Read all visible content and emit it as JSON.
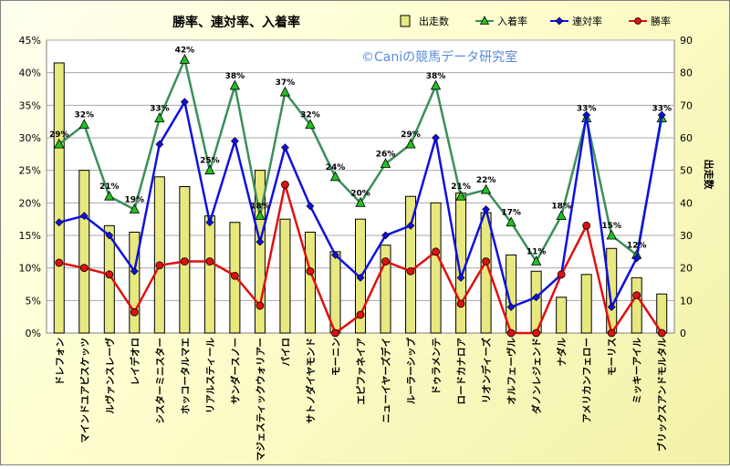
{
  "chart_data": {
    "type": "bar+line",
    "title": "勝率、連対率、入着率",
    "watermark": "©Caniの競馬データ研究室",
    "y_left": {
      "ticks": [
        "0%",
        "5%",
        "10%",
        "15%",
        "20%",
        "25%",
        "30%",
        "35%",
        "40%",
        "45%"
      ],
      "ylim": [
        0,
        45
      ]
    },
    "y_right": {
      "label": "出走数",
      "ticks": [
        "0",
        "10",
        "20",
        "30",
        "40",
        "50",
        "60",
        "70",
        "80",
        "90"
      ],
      "ylim": [
        0,
        90
      ]
    },
    "grid": true,
    "legend_position": "top-right",
    "categories": [
      "ドレフォン",
      "マインドユアビスケッツ",
      "ルヴァンスレーヴ",
      "レイデオロ",
      "シスターミニスター",
      "ホッコータルマエ",
      "リアルスティール",
      "サンダースノー",
      "マジェスティックウォリアー",
      "パイロ",
      "サトノダイヤモンド",
      "モーニン",
      "エピファネイア",
      "ニューイヤーズデイ",
      "ルーラーシップ",
      "ドゥラメンテ",
      "ロードカナロア",
      "リオンディーズ",
      "オルフェーヴル",
      "ダノンレジェンド",
      "ナダル",
      "アメリカンフェロー",
      "モーリス",
      "ミッキーアイル",
      "ブリックスアンドモルタル"
    ],
    "series": [
      {
        "name": "出走数",
        "kind": "bar",
        "axis": "right",
        "color": "#e8e880",
        "values": [
          83,
          50,
          33,
          31,
          48,
          45,
          36,
          34,
          50,
          35,
          31,
          25,
          35,
          27,
          42,
          40,
          43,
          37,
          24,
          19,
          11,
          18,
          26,
          17,
          12
        ]
      },
      {
        "name": "入着率",
        "kind": "line",
        "axis": "left",
        "color": "#3a8f5c",
        "values": [
          29,
          32,
          21,
          19,
          33,
          42,
          25,
          38,
          18,
          37,
          32,
          24,
          20,
          26,
          29,
          38,
          21,
          22,
          17,
          11,
          18,
          33,
          15,
          12,
          33
        ],
        "labels": [
          "29%",
          "32%",
          "21%",
          "19%",
          "33%",
          "42%",
          "25%",
          "38%",
          "18%",
          "37%",
          "32%",
          "24%",
          "20%",
          "26%",
          "29%",
          "38%",
          "21%",
          "22%",
          "17%",
          "11%",
          "18%",
          "33%",
          "15%",
          "12%",
          "33%"
        ]
      },
      {
        "name": "連対率",
        "kind": "line",
        "axis": "left",
        "color": "#1010e0",
        "values": [
          17,
          18,
          15,
          9.5,
          29,
          35.5,
          17,
          29.5,
          14,
          28.5,
          19.5,
          12,
          8.5,
          15,
          16.5,
          30,
          8.5,
          19,
          4,
          5.5,
          9,
          33.5,
          4,
          11.5,
          33.5
        ]
      },
      {
        "name": "勝率",
        "kind": "line",
        "axis": "left",
        "color": "#e01010",
        "values": [
          10.8,
          10,
          9,
          3.2,
          10.4,
          11,
          11,
          8.8,
          4.2,
          22.8,
          9.5,
          0,
          2.8,
          11,
          9.5,
          12.5,
          4.5,
          11,
          0,
          0,
          9,
          16.5,
          0,
          5.8,
          0
        ]
      }
    ]
  }
}
